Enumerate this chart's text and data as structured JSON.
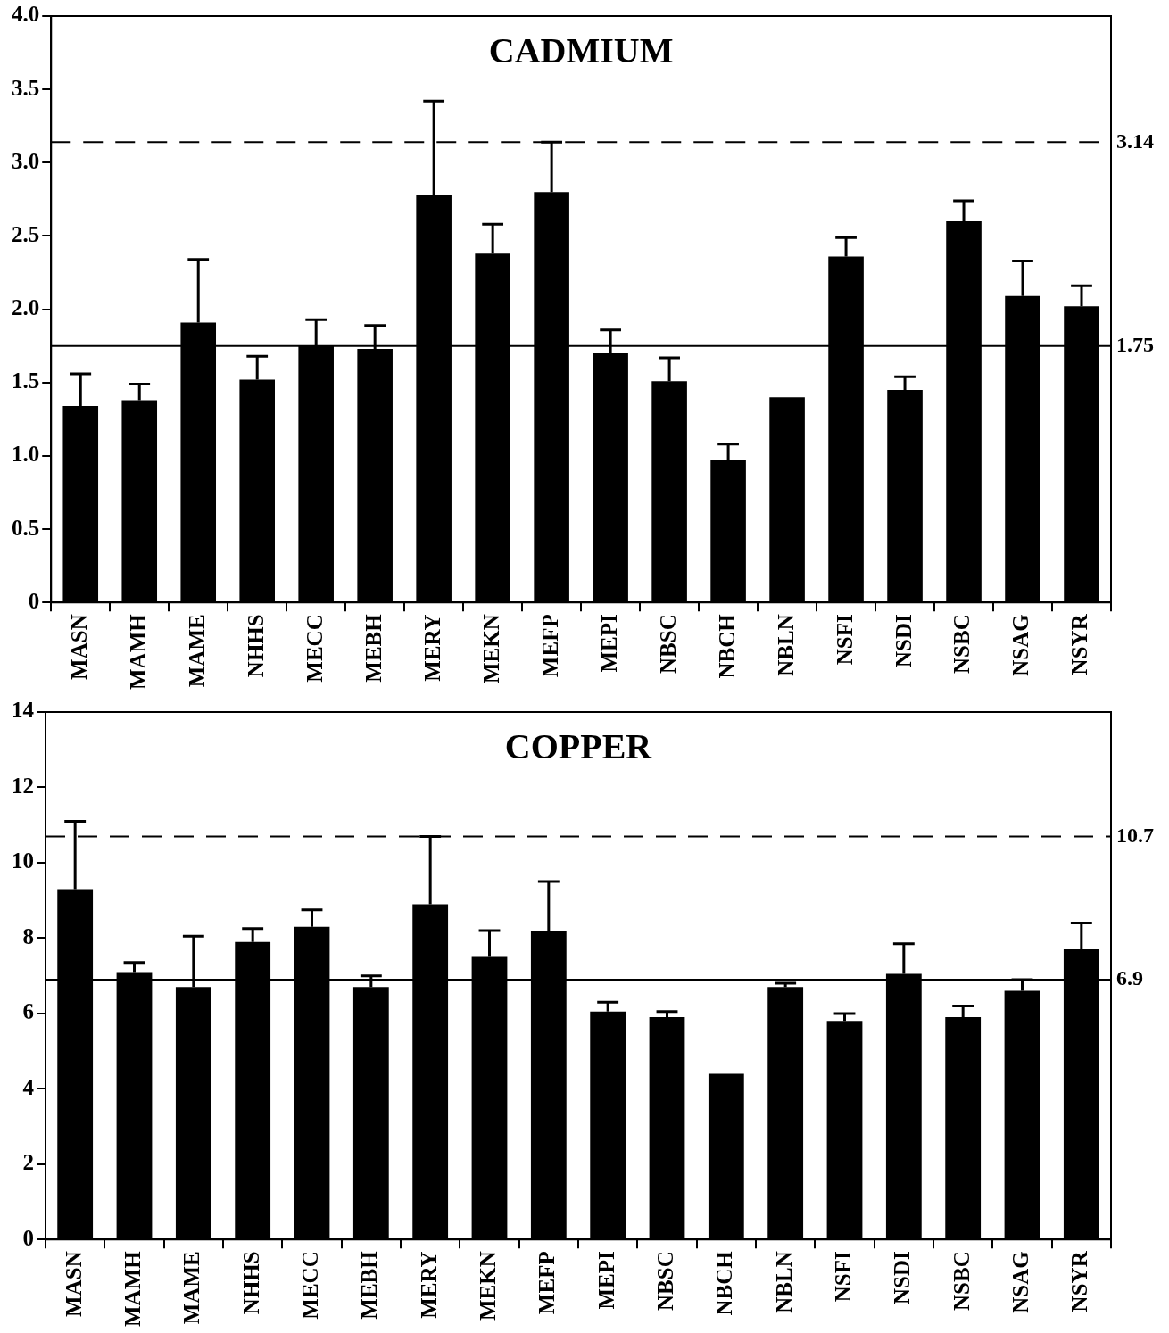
{
  "chart_data": [
    {
      "type": "bar",
      "title": "CADMIUM",
      "categories": [
        "MASN",
        "MAMH",
        "MAME",
        "NHHS",
        "MECC",
        "MEBH",
        "MERY",
        "MEKN",
        "MEFP",
        "MEPI",
        "NBSC",
        "NBCH",
        "NBLN",
        "NSFI",
        "NSDI",
        "NSBC",
        "NSAG",
        "NSYR"
      ],
      "values": [
        1.34,
        1.38,
        1.91,
        1.52,
        1.75,
        1.73,
        2.78,
        2.38,
        2.8,
        1.7,
        1.51,
        0.97,
        1.4,
        2.36,
        1.45,
        2.6,
        2.09,
        2.02
      ],
      "errors": [
        [
          1.34,
          1.56
        ],
        [
          1.38,
          1.49
        ],
        [
          1.91,
          2.34
        ],
        [
          1.52,
          1.68
        ],
        [
          1.75,
          1.93
        ],
        [
          1.73,
          1.89
        ],
        [
          2.78,
          3.42
        ],
        [
          2.38,
          2.58
        ],
        [
          2.8,
          3.14
        ],
        [
          1.7,
          1.86
        ],
        [
          1.51,
          1.67
        ],
        [
          0.97,
          1.08
        ],
        null,
        [
          2.36,
          2.49
        ],
        [
          1.45,
          1.54
        ],
        [
          2.6,
          2.74
        ],
        [
          2.09,
          2.33
        ],
        [
          2.02,
          2.16
        ]
      ],
      "color": "#000000",
      "ylim": [
        0,
        4
      ],
      "yticks": [
        {
          "value": 0,
          "label": "0"
        },
        0.5,
        {
          "value": 1,
          "label": "1.0"
        },
        1.5,
        {
          "value": 2,
          "label": "2.0"
        },
        2.5,
        {
          "value": 3,
          "label": "3.0"
        },
        3.5,
        {
          "value": 4,
          "label": "4.0"
        }
      ],
      "ref_lines": [
        {
          "axis": "y",
          "value": 3.14,
          "label": "3.14",
          "line_style": "dashed"
        },
        {
          "axis": "y",
          "value": 1.75,
          "label": "1.75",
          "line_style": "solid"
        }
      ],
      "grid": false,
      "legend": false
    },
    {
      "type": "bar",
      "title": "COPPER",
      "categories": [
        "MASN",
        "MAMH",
        "MAME",
        "NHHS",
        "MECC",
        "MEBH",
        "MERY",
        "MEKN",
        "MEFP",
        "MEPI",
        "NBSC",
        "NBCH",
        "NBLN",
        "NSFI",
        "NSDI",
        "NSBC",
        "NSAG",
        "NSYR"
      ],
      "values": [
        9.3,
        7.1,
        6.7,
        7.9,
        8.3,
        6.7,
        8.9,
        7.5,
        8.2,
        6.05,
        5.9,
        4.4,
        6.7,
        5.8,
        7.05,
        5.9,
        6.6,
        7.7
      ],
      "errors": [
        [
          9.3,
          11.1
        ],
        [
          7.1,
          7.35
        ],
        [
          6.7,
          8.05
        ],
        [
          7.9,
          8.25
        ],
        [
          8.3,
          8.75
        ],
        [
          6.7,
          7.0
        ],
        [
          8.9,
          10.7
        ],
        [
          7.5,
          8.2
        ],
        [
          8.2,
          9.5
        ],
        [
          6.05,
          6.3
        ],
        [
          5.9,
          6.05
        ],
        null,
        [
          6.7,
          6.8
        ],
        [
          5.8,
          6.0
        ],
        [
          7.05,
          7.85
        ],
        [
          5.9,
          6.2
        ],
        [
          6.6,
          6.9
        ],
        [
          7.7,
          8.4
        ]
      ],
      "color": "#000000",
      "ylim": [
        0,
        14
      ],
      "yticks": [
        0,
        2,
        4,
        6,
        8,
        10,
        12,
        14
      ],
      "ref_lines": [
        {
          "axis": "y",
          "value": 10.7,
          "label": "10.7",
          "line_style": "dashed"
        },
        {
          "axis": "y",
          "value": 6.9,
          "label": "6.9",
          "line_style": "solid"
        }
      ],
      "grid": false,
      "legend": false
    }
  ]
}
